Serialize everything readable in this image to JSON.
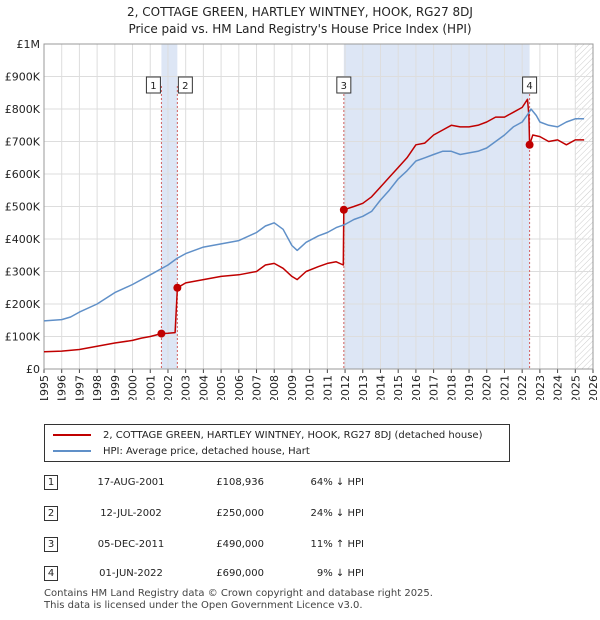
{
  "title_line1": "2, COTTAGE GREEN, HARTLEY WINTNEY, HOOK, RG27 8DJ",
  "title_line2": "Price paid vs. HM Land Registry's House Price Index (HPI)",
  "colors": {
    "price": "#c00000",
    "hpi": "#6090c8",
    "shade": "#dde6f5",
    "vline": "#d06060",
    "grid": "#dddddd"
  },
  "chart_data": {
    "type": "line",
    "xlabel": "",
    "ylabel": "",
    "xlim": [
      1995,
      2026
    ],
    "ylim": [
      0,
      1000000
    ],
    "x_ticks": [
      "1995",
      "1996",
      "1997",
      "1998",
      "1999",
      "2000",
      "2001",
      "2002",
      "2003",
      "2004",
      "2005",
      "2006",
      "2007",
      "2008",
      "2009",
      "2010",
      "2011",
      "2012",
      "2013",
      "2014",
      "2015",
      "2016",
      "2017",
      "2018",
      "2019",
      "2020",
      "2021",
      "2022",
      "2023",
      "2024",
      "2025",
      "2026"
    ],
    "y_ticks": [
      {
        "v": 0,
        "label": "£0"
      },
      {
        "v": 100000,
        "label": "£100K"
      },
      {
        "v": 200000,
        "label": "£200K"
      },
      {
        "v": 300000,
        "label": "£300K"
      },
      {
        "v": 400000,
        "label": "£400K"
      },
      {
        "v": 500000,
        "label": "£500K"
      },
      {
        "v": 600000,
        "label": "£600K"
      },
      {
        "v": 700000,
        "label": "£700K"
      },
      {
        "v": 800000,
        "label": "£800K"
      },
      {
        "v": 900000,
        "label": "£900K"
      },
      {
        "v": 1000000,
        "label": "£1M"
      }
    ],
    "shaded_ranges": [
      [
        2001.63,
        2002.53
      ],
      [
        2011.93,
        2022.42
      ]
    ],
    "future_hatch_from": 2025.0,
    "series": [
      {
        "name": "2, COTTAGE GREEN, HARTLEY WINTNEY, HOOK, RG27 8DJ (detached house)",
        "key": "price",
        "x": [
          1995.0,
          1996.0,
          1997.0,
          1998.0,
          1999.0,
          2000.0,
          2000.5,
          2001.0,
          2001.63,
          2002.0,
          2002.4,
          2002.53,
          2003.0,
          2004.0,
          2005.0,
          2006.0,
          2007.0,
          2007.5,
          2008.0,
          2008.5,
          2009.0,
          2009.3,
          2009.8,
          2010.5,
          2011.0,
          2011.5,
          2011.9,
          2011.93,
          2012.5,
          2013.0,
          2013.5,
          2014.0,
          2014.5,
          2015.0,
          2015.5,
          2016.0,
          2016.5,
          2017.0,
          2017.5,
          2018.0,
          2018.5,
          2019.0,
          2019.5,
          2020.0,
          2020.5,
          2021.0,
          2021.5,
          2022.0,
          2022.3,
          2022.38,
          2022.42,
          2022.6,
          2023.0,
          2023.5,
          2024.0,
          2024.5,
          2025.0,
          2025.5
        ],
        "values": [
          53000,
          55000,
          60000,
          70000,
          80000,
          88000,
          95000,
          100000,
          108936,
          110000,
          112000,
          250000,
          265000,
          275000,
          285000,
          290000,
          300000,
          320000,
          325000,
          310000,
          285000,
          275000,
          300000,
          315000,
          325000,
          330000,
          320000,
          490000,
          500000,
          510000,
          530000,
          560000,
          590000,
          620000,
          650000,
          690000,
          695000,
          720000,
          735000,
          750000,
          745000,
          745000,
          750000,
          760000,
          775000,
          775000,
          790000,
          805000,
          830000,
          780000,
          690000,
          720000,
          715000,
          700000,
          705000,
          690000,
          705000,
          705000
        ]
      },
      {
        "name": "HPI: Average price, detached house, Hart",
        "key": "hpi",
        "x": [
          1995.0,
          1996.0,
          1996.5,
          1997.0,
          1998.0,
          1999.0,
          2000.0,
          2001.0,
          2002.0,
          2002.5,
          2003.0,
          2004.0,
          2005.0,
          2006.0,
          2007.0,
          2007.5,
          2008.0,
          2008.5,
          2009.0,
          2009.3,
          2009.8,
          2010.5,
          2011.0,
          2011.5,
          2012.0,
          2012.5,
          2013.0,
          2013.5,
          2014.0,
          2014.5,
          2015.0,
          2015.5,
          2016.0,
          2016.5,
          2017.0,
          2017.5,
          2018.0,
          2018.5,
          2019.0,
          2019.5,
          2020.0,
          2020.5,
          2021.0,
          2021.5,
          2022.0,
          2022.4,
          2022.5,
          2022.8,
          2023.0,
          2023.5,
          2024.0,
          2024.5,
          2025.0,
          2025.5
        ],
        "values": [
          148000,
          152000,
          160000,
          175000,
          200000,
          235000,
          260000,
          290000,
          320000,
          340000,
          355000,
          375000,
          385000,
          395000,
          420000,
          440000,
          450000,
          430000,
          380000,
          365000,
          390000,
          410000,
          420000,
          435000,
          445000,
          460000,
          470000,
          485000,
          520000,
          550000,
          585000,
          610000,
          640000,
          650000,
          660000,
          670000,
          670000,
          660000,
          665000,
          670000,
          680000,
          700000,
          720000,
          745000,
          760000,
          790000,
          800000,
          780000,
          760000,
          750000,
          745000,
          760000,
          770000,
          770000
        ]
      }
    ],
    "sales": [
      {
        "n": "1",
        "x": 2001.63,
        "value": 108936
      },
      {
        "n": "2",
        "x": 2002.53,
        "value": 250000
      },
      {
        "n": "3",
        "x": 2011.93,
        "value": 490000
      },
      {
        "n": "4",
        "x": 2022.42,
        "value": 690000
      }
    ]
  },
  "legend": {
    "price_label": "2, COTTAGE GREEN, HARTLEY WINTNEY, HOOK, RG27 8DJ (detached house)",
    "hpi_label": "HPI: Average price, detached house, Hart"
  },
  "table": [
    {
      "n": "1",
      "date": "17-AUG-2001",
      "price": "£108,936",
      "hpi": "64% ↓ HPI"
    },
    {
      "n": "2",
      "date": "12-JUL-2002",
      "price": "£250,000",
      "hpi": "24% ↓ HPI"
    },
    {
      "n": "3",
      "date": "05-DEC-2011",
      "price": "£490,000",
      "hpi": "11% ↑ HPI"
    },
    {
      "n": "4",
      "date": "01-JUN-2022",
      "price": "£690,000",
      "hpi": "9% ↓ HPI"
    }
  ],
  "footer": {
    "line1": "Contains HM Land Registry data © Crown copyright and database right 2025.",
    "line2": "This data is licensed under the Open Government Licence v3.0."
  }
}
